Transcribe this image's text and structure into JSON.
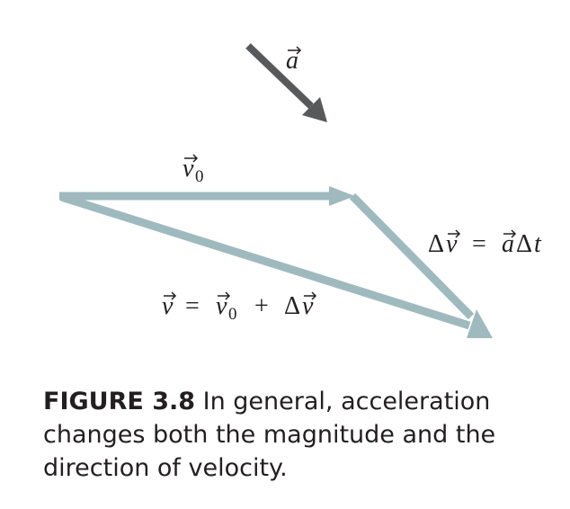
{
  "figure": {
    "colors": {
      "velocity_vectors": "#9fbabe",
      "acceleration_vector": "#58595b",
      "text": "#231f20"
    },
    "labels": {
      "acceleration": "a",
      "initial_velocity": "v",
      "initial_velocity_subscript": "0",
      "change_in_velocity_eq": {
        "delta": "Δ",
        "v": "v",
        "equals": "=",
        "a": "a",
        "delta_t": "Δ",
        "t": "t"
      },
      "final_velocity_eq": {
        "v": "v",
        "equals": "=",
        "v0": "v",
        "sub0": "0",
        "plus": "+",
        "delta": "Δ",
        "dv": "v"
      }
    },
    "caption": {
      "label": "FIGURE 3.8",
      "text": "In general, acceleration changes both the magnitude and the direction of velocity."
    }
  }
}
